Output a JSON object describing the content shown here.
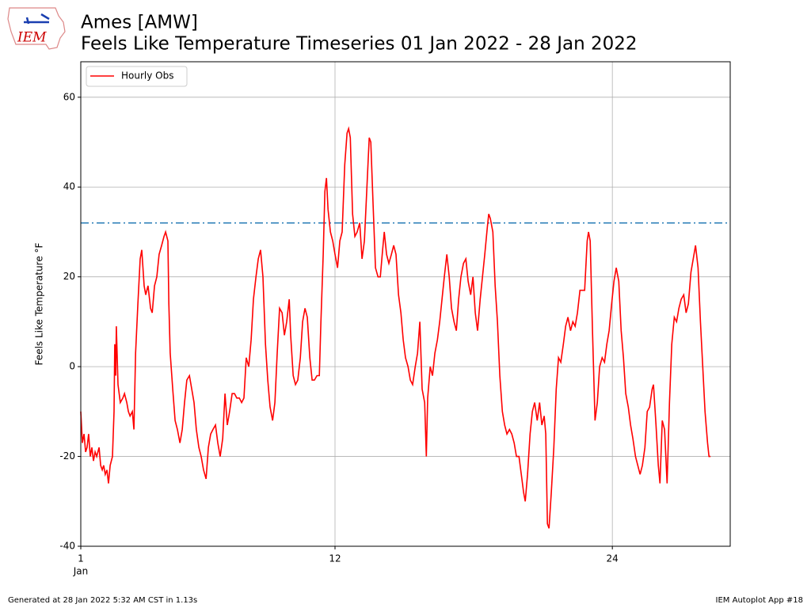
{
  "chart_data": {
    "type": "line",
    "title": "Ames [AMW]",
    "subtitle": "Feels Like Temperature Timeseries 01 Jan 2022 - 28 Jan 2022",
    "ylabel": "Feels Like Temperature °F",
    "logo_text": "IEM",
    "footer_left": "Generated at 28 Jan 2022 5:32 AM CST in 1.13s",
    "footer_right": "IEM Autoplot App #18",
    "xtick_month": "Jan",
    "xlim": [
      1,
      29.1
    ],
    "xticks": [
      1,
      12,
      24
    ],
    "ylim": [
      -40,
      67.9
    ],
    "yticks": [
      -40,
      -20,
      0,
      20,
      40,
      60
    ],
    "grid": true,
    "legend": "upper left",
    "reference_line": {
      "value": 32,
      "color": "#1f77b4"
    },
    "x": [
      1.0,
      1.07,
      1.14,
      1.21,
      1.27,
      1.34,
      1.41,
      1.48,
      1.55,
      1.62,
      1.69,
      1.79,
      1.86,
      1.93,
      1.99,
      2.06,
      2.13,
      2.2,
      2.27,
      2.37,
      2.44,
      2.47,
      2.51,
      2.54,
      2.61,
      2.71,
      2.82,
      2.89,
      2.99,
      3.06,
      3.13,
      3.23,
      3.3,
      3.37,
      3.47,
      3.57,
      3.64,
      3.74,
      3.81,
      3.91,
      4.02,
      4.09,
      4.19,
      4.29,
      4.39,
      4.5,
      4.6,
      4.67,
      4.77,
      4.81,
      4.87,
      4.98,
      5.08,
      5.18,
      5.29,
      5.39,
      5.49,
      5.59,
      5.7,
      5.8,
      5.9,
      6.0,
      6.11,
      6.21,
      6.31,
      6.42,
      6.52,
      6.62,
      6.72,
      6.83,
      6.93,
      7.03,
      7.14,
      7.24,
      7.34,
      7.44,
      7.55,
      7.65,
      7.75,
      7.86,
      7.96,
      8.06,
      8.16,
      8.27,
      8.37,
      8.47,
      8.58,
      8.68,
      8.78,
      8.88,
      8.99,
      9.09,
      9.19,
      9.3,
      9.4,
      9.5,
      9.6,
      9.71,
      9.81,
      9.91,
      10.02,
      10.08,
      10.19,
      10.29,
      10.39,
      10.5,
      10.6,
      10.7,
      10.8,
      10.91,
      11.01,
      11.11,
      11.22,
      11.32,
      11.39,
      11.49,
      11.56,
      11.63,
      11.7,
      11.8,
      11.9,
      12.0,
      12.11,
      12.21,
      12.31,
      12.42,
      12.52,
      12.59,
      12.66,
      12.76,
      12.86,
      12.96,
      13.07,
      13.17,
      13.27,
      13.38,
      13.48,
      13.55,
      13.65,
      13.75,
      13.86,
      13.96,
      14.06,
      14.13,
      14.23,
      14.33,
      14.44,
      14.54,
      14.64,
      14.75,
      14.85,
      14.95,
      15.05,
      15.16,
      15.26,
      15.36,
      15.47,
      15.57,
      15.67,
      15.77,
      15.88,
      15.95,
      16.01,
      16.12,
      16.22,
      16.32,
      16.43,
      16.53,
      16.63,
      16.73,
      16.84,
      16.94,
      17.04,
      17.15,
      17.25,
      17.35,
      17.45,
      17.56,
      17.66,
      17.76,
      17.87,
      17.97,
      18.07,
      18.17,
      18.28,
      18.38,
      18.48,
      18.59,
      18.65,
      18.72,
      18.83,
      18.93,
      19.03,
      19.13,
      19.24,
      19.34,
      19.44,
      19.55,
      19.65,
      19.75,
      19.85,
      19.96,
      20.06,
      20.16,
      20.23,
      20.33,
      20.44,
      20.54,
      20.64,
      20.75,
      20.85,
      20.95,
      21.05,
      21.12,
      21.19,
      21.26,
      21.36,
      21.47,
      21.57,
      21.67,
      21.77,
      21.88,
      21.98,
      22.08,
      22.19,
      22.29,
      22.39,
      22.49,
      22.6,
      22.7,
      22.8,
      22.91,
      22.97,
      23.04,
      23.14,
      23.25,
      23.35,
      23.45,
      23.56,
      23.66,
      23.76,
      23.86,
      23.97,
      24.07,
      24.17,
      24.28,
      24.38,
      24.48,
      24.58,
      24.69,
      24.79,
      24.89,
      25.0,
      25.1,
      25.2,
      25.3,
      25.41,
      25.51,
      25.61,
      25.72,
      25.78,
      25.89,
      25.99,
      26.06,
      26.16,
      26.26,
      26.37,
      26.47,
      26.57,
      26.68,
      26.78,
      26.88,
      26.98,
      27.09,
      27.19,
      27.29,
      27.4,
      27.5,
      27.6,
      27.71,
      27.81,
      27.91,
      28.01,
      28.12,
      28.18,
      28.25
    ],
    "series": [
      {
        "name": "Hourly Obs",
        "color": "#ff0000",
        "values": [
          -10,
          -17,
          -15,
          -19,
          -18,
          -15,
          -20,
          -18,
          -21,
          -19,
          -20,
          -18,
          -22,
          -23,
          -22,
          -24,
          -23,
          -26,
          -22,
          -20,
          -10,
          5,
          -2,
          9,
          -4,
          -8,
          -7,
          -6,
          -8,
          -10,
          -11,
          -10,
          -14,
          3,
          14,
          24,
          26,
          18,
          16,
          18,
          13,
          12,
          18,
          20,
          25,
          27,
          29,
          30,
          28,
          14,
          3,
          -5,
          -12,
          -14,
          -17,
          -14,
          -8,
          -3,
          -2,
          -5,
          -8,
          -14,
          -18,
          -20,
          -23,
          -25,
          -18,
          -15,
          -14,
          -13,
          -17,
          -20,
          -16,
          -6,
          -13,
          -10,
          -6,
          -6,
          -7,
          -7,
          -8,
          -7,
          2,
          0,
          6,
          15,
          20,
          24,
          26,
          20,
          5,
          -3,
          -9,
          -12,
          -8,
          3,
          13,
          12,
          7,
          10,
          15,
          7,
          -2,
          -4,
          -3,
          2,
          10,
          13,
          11,
          2,
          -3,
          -3,
          -2,
          -2,
          10,
          25,
          39,
          42,
          35,
          30,
          28,
          25,
          22,
          28,
          30,
          45,
          52,
          53,
          51,
          34,
          29,
          30,
          32,
          24,
          28,
          40,
          51,
          50,
          36,
          22,
          20,
          20,
          26,
          30,
          25,
          23,
          25,
          27,
          25,
          16,
          12,
          6,
          2,
          0,
          -3,
          -4,
          0,
          3,
          10,
          -5,
          -8,
          -20,
          -7,
          0,
          -2,
          3,
          6,
          10,
          15,
          20,
          25,
          20,
          13,
          10,
          8,
          15,
          20,
          23,
          24,
          19,
          16,
          20,
          12,
          8,
          15,
          20,
          25,
          31,
          34,
          33,
          30,
          18,
          10,
          -2,
          -10,
          -13,
          -15,
          -14,
          -15,
          -17,
          -20,
          -20,
          -24,
          -28,
          -30,
          -24,
          -15,
          -10,
          -8,
          -12,
          -8,
          -13,
          -11,
          -15,
          -35,
          -36,
          -28,
          -18,
          -5,
          2,
          1,
          5,
          9,
          11,
          8,
          10,
          9,
          12,
          17,
          17,
          17,
          28,
          30,
          28,
          8,
          -12,
          -8,
          0,
          2,
          1,
          5,
          8,
          14,
          19,
          22,
          19,
          8,
          2,
          -6,
          -9,
          -13,
          -16,
          -20,
          -22,
          -24,
          -22,
          -18,
          -10,
          -9,
          -5,
          -4,
          -13,
          -22,
          -26,
          -12,
          -14,
          -26,
          -8,
          5,
          11,
          10,
          13,
          15,
          16,
          12,
          14,
          21,
          24,
          27,
          22,
          10,
          0,
          -10,
          -17,
          -20,
          -20
        ]
      }
    ]
  }
}
